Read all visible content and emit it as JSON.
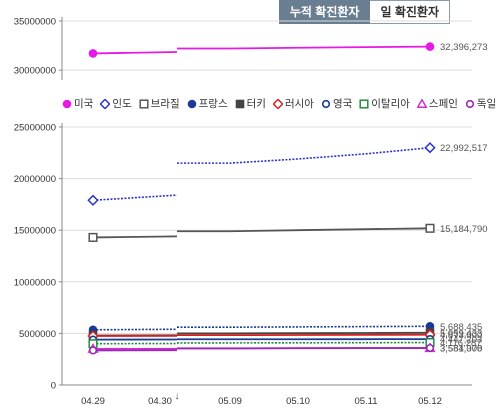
{
  "tabs": {
    "cumulative_label": "누적 확진환자",
    "daily_label": "일 확진환자"
  },
  "chart_data": {
    "type": "line",
    "categories": [
      "04.29",
      "04.30",
      "05.09",
      "05.10",
      "05.11",
      "05.12"
    ],
    "break_after_index": 1,
    "top_panel": {
      "ylim": [
        29000000,
        35000000
      ],
      "ticks": [
        "35000000",
        "30000000"
      ],
      "series": [
        "미국"
      ]
    },
    "bottom_panel": {
      "ylim": [
        0,
        25000000
      ],
      "ticks": [
        "25000000",
        "20000000",
        "15000000",
        "10000000",
        "5000000",
        "0"
      ]
    },
    "series": [
      {
        "name": "미국",
        "color": "#e619e6",
        "marker": "circle-filled",
        "style": "solid",
        "values": [
          31700000,
          31850000,
          32200000,
          32280000,
          32340000,
          32396273
        ],
        "end_label": "32,396,273"
      },
      {
        "name": "인도",
        "color": "#2a34cc",
        "marker": "diamond-open",
        "style": "dotted",
        "values": [
          17900000,
          18400000,
          21500000,
          21900000,
          22400000,
          22992517
        ],
        "end_label": "22,992,517"
      },
      {
        "name": "브라질",
        "color": "#555555",
        "marker": "square-open",
        "style": "solid",
        "values": [
          14300000,
          14400000,
          14900000,
          15000000,
          15100000,
          15184790
        ],
        "end_label": "15,184,790"
      },
      {
        "name": "프랑스",
        "color": "#1c3a94",
        "marker": "circle-filled",
        "style": "dotted",
        "values": [
          5350000,
          5400000,
          5600000,
          5630000,
          5660000,
          5688435
        ],
        "end_label": "5,688,435"
      },
      {
        "name": "터키",
        "color": "#444444",
        "marker": "square-filled",
        "style": "solid",
        "values": [
          4800000,
          4820000,
          5000000,
          5020000,
          5040000,
          5059433
        ],
        "end_label": "5,059,433"
      },
      {
        "name": "러시아",
        "color": "#d62020",
        "marker": "diamond-open",
        "style": "solid",
        "values": [
          4750000,
          4760000,
          4830000,
          4845000,
          4860000,
          4873000
        ],
        "end_label": "4,873,000"
      },
      {
        "name": "영국",
        "color": "#1c3a94",
        "marker": "circle-open",
        "style": "solid",
        "values": [
          4400000,
          4410000,
          4430000,
          4435000,
          4440000,
          4447203
        ],
        "end_label": "4,447,203"
      },
      {
        "name": "이탈리아",
        "color": "#1e8c3a",
        "marker": "square-open",
        "style": "dotted",
        "values": [
          4000000,
          4020000,
          4080000,
          4090000,
          4100000,
          4116287
        ],
        "end_label": "4,116,287"
      },
      {
        "name": "스페인",
        "color": "#d030d0",
        "marker": "triangle-open",
        "style": "solid",
        "values": [
          3500000,
          3510000,
          3560000,
          3570000,
          3578000,
          3584000
        ],
        "end_label": "3,584,000"
      },
      {
        "name": "독일",
        "color": "#9b2ab3",
        "marker": "circle-open",
        "style": "solid",
        "values": [
          3350000,
          3370000,
          3540000,
          3560000,
          3570000,
          3581378
        ],
        "end_label": "3,581,378"
      }
    ]
  }
}
